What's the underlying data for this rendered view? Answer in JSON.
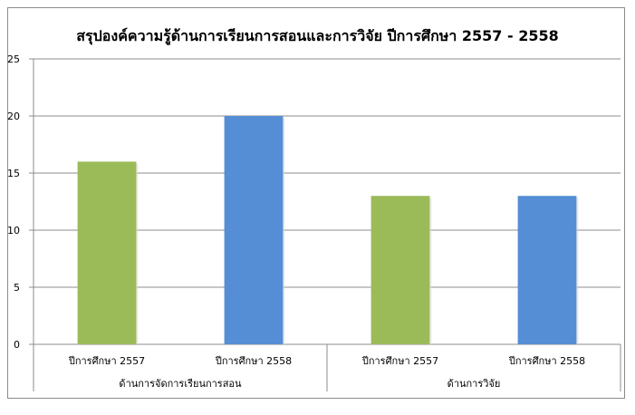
{
  "chart_data": {
    "type": "bar",
    "title": "สรุปองค์ความรู้ด้านการเรียนการสอนและการวิจัย ปีการศึกษา 2557 - 2558",
    "xlabel": "",
    "ylabel": "",
    "ylim": [
      0,
      25
    ],
    "yticks": [
      0,
      5,
      10,
      15,
      20,
      25
    ],
    "grid": true,
    "legend": "none",
    "groups": [
      {
        "name": "ด้านการจัดการเรียนการสอน",
        "categories": [
          "ปีการศึกษา 2557",
          "ปีการศึกษา 2558"
        ],
        "values": [
          16,
          20
        ]
      },
      {
        "name": "ด้านการวิจัย",
        "categories": [
          "ปีการศึกษา 2557",
          "ปีการศึกษา 2558"
        ],
        "values": [
          13,
          13
        ]
      }
    ],
    "bar_colors": [
      "#9bbb59",
      "#558ed5"
    ]
  }
}
